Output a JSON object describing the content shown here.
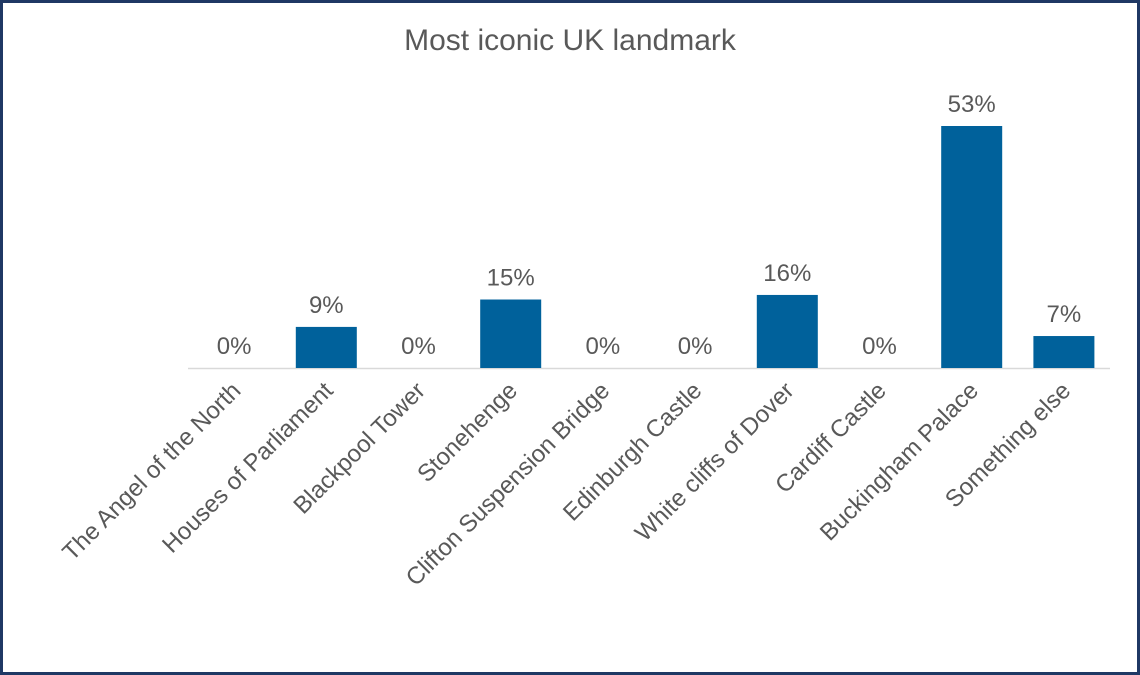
{
  "chart_data": {
    "type": "bar",
    "title": "Most iconic UK landmark",
    "categories": [
      "The Angel of the North",
      "Houses of Parliament",
      "Blackpool Tower",
      "Stonehenge",
      "Clifton Suspension Bridge",
      "Edinburgh Castle",
      "White cliffs of Dover",
      "Cardiff Castle",
      "Buckingham Palace",
      "Something else"
    ],
    "values": [
      0,
      9,
      0,
      15,
      0,
      0,
      16,
      0,
      53,
      7
    ],
    "value_labels": [
      "0%",
      "9%",
      "0%",
      "15%",
      "0%",
      "0%",
      "16%",
      "0%",
      "53%",
      "7%"
    ],
    "color": "#00619b"
  }
}
